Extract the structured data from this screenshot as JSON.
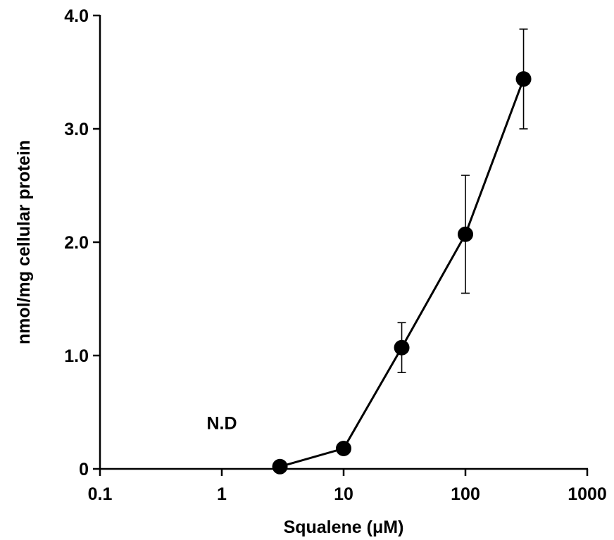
{
  "chart_data": {
    "type": "line",
    "title": "",
    "xlabel": "Squalene (μM)",
    "ylabel": "nmol/mg cellular protein",
    "x_scale": "log",
    "xlim": [
      0.1,
      1000
    ],
    "ylim": [
      0,
      4.0
    ],
    "x_ticks": [
      {
        "value": 0.1,
        "label": "0.1"
      },
      {
        "value": 1,
        "label": "1"
      },
      {
        "value": 10,
        "label": "10"
      },
      {
        "value": 100,
        "label": "100"
      },
      {
        "value": 1000,
        "label": "1000"
      }
    ],
    "y_ticks": [
      {
        "value": 0,
        "label": "0"
      },
      {
        "value": 1.0,
        "label": "1.0"
      },
      {
        "value": 2.0,
        "label": "2.0"
      },
      {
        "value": 3.0,
        "label": "3.0"
      },
      {
        "value": 4.0,
        "label": "4.0"
      }
    ],
    "grid": false,
    "legend": "none",
    "series": [
      {
        "x": [
          3,
          10,
          30,
          100,
          300
        ],
        "y": [
          0.02,
          0.18,
          1.07,
          2.07,
          3.44
        ],
        "error": [
          0.0,
          0.03,
          0.22,
          0.52,
          0.44
        ],
        "color": "#000000",
        "marker": "circle"
      }
    ],
    "annotations": [
      {
        "text": "N.D",
        "x": 1,
        "y": 0.35
      }
    ]
  }
}
